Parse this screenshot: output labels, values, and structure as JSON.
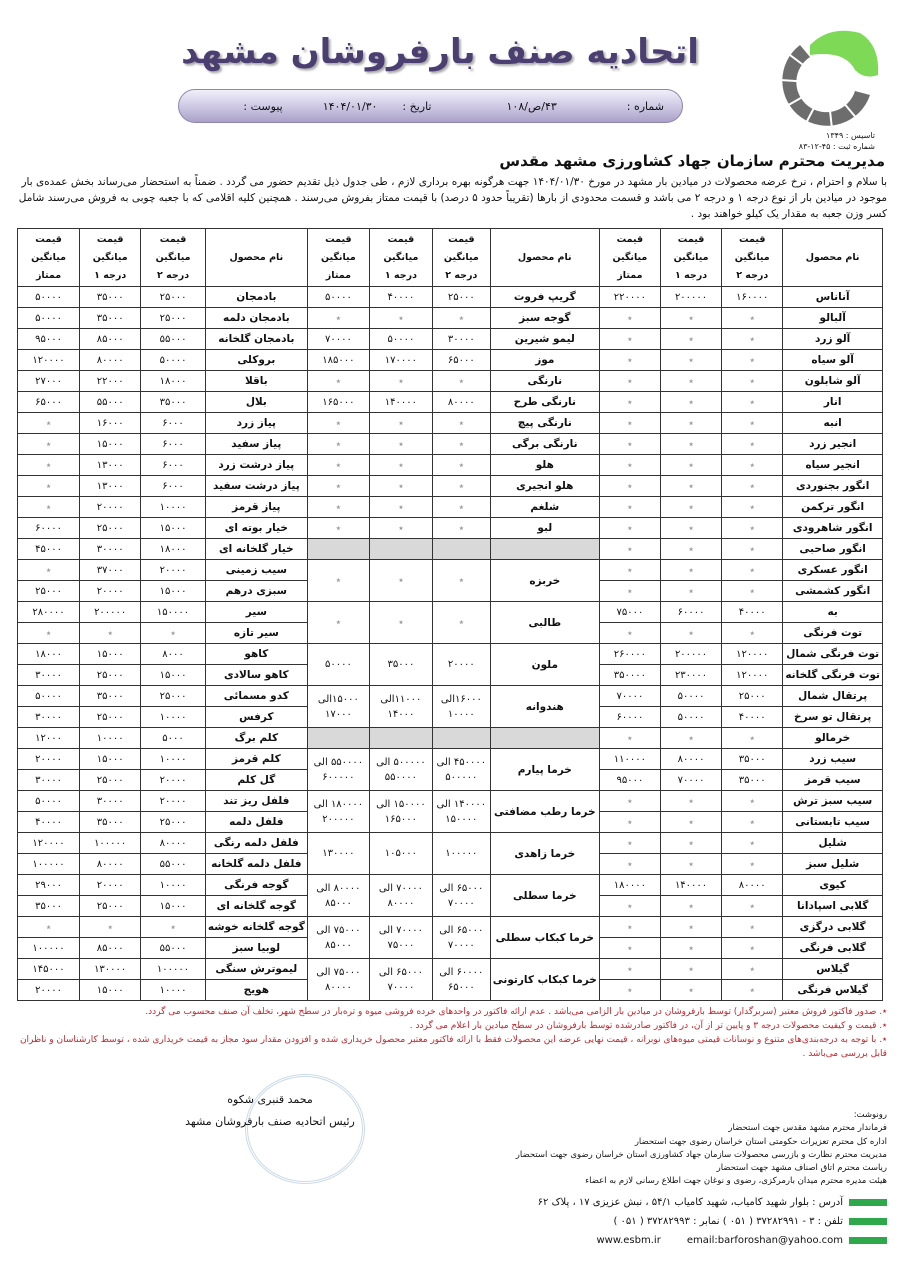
{
  "header": {
    "title": "اتحادیه صنف بارفروشان مشهد",
    "number_label": "شماره :",
    "number": "۴۳/ص/۱۰۸",
    "date_label": "تاریخ :",
    "date": "۱۴۰۴/۰۱/۳۰",
    "attachment_label": "پیوست :",
    "founded": "تاسیس : ۱۳۴۹",
    "registration": "شماره ثبت : ۴۵-۱۲-۸۳",
    "brand_colors": {
      "title": "#4b3f72",
      "logo_green": "#7ed957",
      "logo_gray": "#6d6d6d"
    }
  },
  "letter": {
    "addressee": "مدیریت محترم سازمان جهاد کشاورزی مشهد مقدس",
    "paragraph": "با سلام و احترام ، نرخ عرضه محصولات در میادین بار مشهد در مورخ ۱۴۰۴/۰۱/۳۰ جهت هرگونه بهره برداری لازم ، طی جدول ذیل تقدیم حضور می گردد . ضمناً به استحضار می‌رساند بخش عمده‌ی بار موجود در میادین بار از نوع درجه ۱ و درجه ۲ می باشد و قسمت محدودی از بارها (تقریباً حدود ۵ درصد) با قیمت ممتاز بفروش می‌رسند . همچنین کلیه اقلامی که با جعبه چوبی به فروش می‌رسند شامل کسر وزن جعبه به مقدار یک کیلو خواهند بود ."
  },
  "table": {
    "headers": {
      "name": "نام محصول",
      "g2": "قیمت میانگین درجه ۲",
      "g1": "قیمت میانگین درجه ۱",
      "premium": "قیمت میانگین ممتاز"
    },
    "unavailable": "٭",
    "right": [
      [
        "آناناس",
        "۱۶۰۰۰۰",
        "۲۰۰۰۰۰",
        "۲۲۰۰۰۰"
      ],
      [
        "آلبالو",
        "٭",
        "٭",
        "٭"
      ],
      [
        "آلو زرد",
        "٭",
        "٭",
        "٭"
      ],
      [
        "آلو سیاه",
        "٭",
        "٭",
        "٭"
      ],
      [
        "آلو شابلون",
        "٭",
        "٭",
        "٭"
      ],
      [
        "انار",
        "٭",
        "٭",
        "٭"
      ],
      [
        "انبه",
        "٭",
        "٭",
        "٭"
      ],
      [
        "انجیر زرد",
        "٭",
        "٭",
        "٭"
      ],
      [
        "انجیر سیاه",
        "٭",
        "٭",
        "٭"
      ],
      [
        "انگور بجنوردی",
        "٭",
        "٭",
        "٭"
      ],
      [
        "انگور ترکمن",
        "٭",
        "٭",
        "٭"
      ],
      [
        "انگور شاهرودی",
        "٭",
        "٭",
        "٭"
      ],
      [
        "انگور صاحبی",
        "٭",
        "٭",
        "٭"
      ],
      [
        "انگور عسکری",
        "٭",
        "٭",
        "٭"
      ],
      [
        "انگور کشمشی",
        "٭",
        "٭",
        "٭"
      ],
      [
        "به",
        "۴۰۰۰۰",
        "۶۰۰۰۰",
        "۷۵۰۰۰"
      ],
      [
        "توت فرنگی",
        "٭",
        "٭",
        "٭"
      ],
      [
        "توت فرنگی شمال",
        "۱۲۰۰۰۰",
        "۲۰۰۰۰۰",
        "۲۶۰۰۰۰"
      ],
      [
        "توت فرنگی گلخانه",
        "۱۲۰۰۰۰",
        "۲۳۰۰۰۰",
        "۳۵۰۰۰۰"
      ],
      [
        "پرتقال شمال",
        "۲۵۰۰۰",
        "۵۰۰۰۰",
        "۷۰۰۰۰"
      ],
      [
        "پرتقال تو سرخ",
        "۴۰۰۰۰",
        "۵۰۰۰۰",
        "۶۰۰۰۰"
      ],
      [
        "خرمالو",
        "٭",
        "٭",
        "٭"
      ],
      [
        "سیب زرد",
        "۳۵۰۰۰",
        "۸۰۰۰۰",
        "۱۱۰۰۰۰"
      ],
      [
        "سیب قرمز",
        "۳۵۰۰۰",
        "۷۰۰۰۰",
        "۹۵۰۰۰"
      ],
      [
        "سیب سبز ترش",
        "٭",
        "٭",
        "٭"
      ],
      [
        "سیب تابستانی",
        "٭",
        "٭",
        "٭"
      ],
      [
        "شلیل",
        "٭",
        "٭",
        "٭"
      ],
      [
        "شلیل سبز",
        "٭",
        "٭",
        "٭"
      ],
      [
        "کیوی",
        "۸۰۰۰۰",
        "۱۴۰۰۰۰",
        "۱۸۰۰۰۰"
      ],
      [
        "گلابی اسپادانا",
        "٭",
        "٭",
        "٭"
      ],
      [
        "گلابی درگزی",
        "٭",
        "٭",
        "٭"
      ],
      [
        "گلابی فرنگی",
        "٭",
        "٭",
        "٭"
      ],
      [
        "گیلاس",
        "٭",
        "٭",
        "٭"
      ],
      [
        "گیلاس فرنگی",
        "٭",
        "٭",
        "٭"
      ]
    ],
    "middle": [
      {
        "span": 1,
        "v": [
          "گریپ فروت",
          "۲۵۰۰۰",
          "۴۰۰۰۰",
          "۵۰۰۰۰"
        ]
      },
      {
        "span": 1,
        "v": [
          "گوجه سبز",
          "٭",
          "٭",
          "٭"
        ]
      },
      {
        "span": 1,
        "v": [
          "لیمو شیرین",
          "۳۰۰۰۰",
          "۵۰۰۰۰",
          "۷۰۰۰۰"
        ]
      },
      {
        "span": 1,
        "v": [
          "موز",
          "۶۵۰۰۰",
          "۱۷۰۰۰۰",
          "۱۸۵۰۰۰"
        ]
      },
      {
        "span": 1,
        "v": [
          "نارنگی",
          "٭",
          "٭",
          "٭"
        ]
      },
      {
        "span": 1,
        "v": [
          "نارنگی طرح",
          "۸۰۰۰۰",
          "۱۴۰۰۰۰",
          "۱۶۵۰۰۰"
        ]
      },
      {
        "span": 1,
        "v": [
          "نارنگی پیچ",
          "٭",
          "٭",
          "٭"
        ]
      },
      {
        "span": 1,
        "v": [
          "نارنگی برگی",
          "٭",
          "٭",
          "٭"
        ]
      },
      {
        "span": 1,
        "v": [
          "هلو",
          "٭",
          "٭",
          "٭"
        ]
      },
      {
        "span": 1,
        "v": [
          "هلو انجیری",
          "٭",
          "٭",
          "٭"
        ]
      },
      {
        "span": 1,
        "v": [
          "شلغم",
          "٭",
          "٭",
          "٭"
        ]
      },
      {
        "span": 1,
        "v": [
          "لبو",
          "٭",
          "٭",
          "٭"
        ]
      },
      {
        "span": 1,
        "empty": true
      },
      {
        "span": 2,
        "v": [
          "خربزه",
          "٭",
          "٭",
          "٭"
        ]
      },
      {
        "span": 2,
        "v": [
          "طالبی",
          "٭",
          "٭",
          "٭"
        ]
      },
      {
        "span": 2,
        "v": [
          "ملون",
          "۲۰۰۰۰",
          "۳۵۰۰۰",
          "۵۰۰۰۰"
        ]
      },
      {
        "span": 2,
        "v": [
          "هندوانه",
          "۱۶۰۰۰الی ۱۰۰۰۰",
          "۱۱۰۰۰الی ۱۴۰۰۰",
          "۱۵۰۰۰الی ۱۷۰۰۰"
        ]
      },
      {
        "span": 1,
        "empty": true
      },
      {
        "span": 2,
        "v": [
          "خرما پیارم",
          "۴۵۰۰۰۰ الی ۵۰۰۰۰۰",
          "۵۰۰۰۰۰ الی ۵۵۰۰۰۰",
          "۵۵۰۰۰۰ الی ۶۰۰۰۰۰"
        ]
      },
      {
        "span": 2,
        "v": [
          "خرما رطب مضافتی",
          "۱۴۰۰۰۰ الی ۱۵۰۰۰۰",
          "۱۵۰۰۰۰ الی ۱۶۵۰۰۰",
          "۱۸۰۰۰۰ الی ۲۰۰۰۰۰"
        ]
      },
      {
        "span": 2,
        "v": [
          "خرما زاهدی",
          "۱۰۰۰۰۰",
          "۱۰۵۰۰۰",
          "۱۳۰۰۰۰"
        ]
      },
      {
        "span": 2,
        "v": [
          "خرما سطلی",
          "۶۵۰۰۰ الی ۷۰۰۰۰",
          "۷۰۰۰۰ الی ۸۰۰۰۰",
          "۸۰۰۰۰ الی ۸۵۰۰۰"
        ]
      },
      {
        "span": 2,
        "v": [
          "خرما کبکاب سطلی",
          "۶۵۰۰۰ الی ۷۰۰۰۰",
          "۷۰۰۰۰ الی ۷۵۰۰۰",
          "۷۵۰۰۰ الی ۸۵۰۰۰"
        ]
      },
      {
        "span": 2,
        "v": [
          "خرما کبکاب کارتونی",
          "۶۰۰۰۰ الی ۶۵۰۰۰",
          "۶۵۰۰۰ الی ۷۰۰۰۰",
          "۷۵۰۰۰ الی ۸۰۰۰۰"
        ]
      }
    ],
    "left": [
      [
        "بادمجان",
        "۲۵۰۰۰",
        "۳۵۰۰۰",
        "۵۰۰۰۰"
      ],
      [
        "بادمجان دلمه",
        "۲۵۰۰۰",
        "۳۵۰۰۰",
        "۵۰۰۰۰"
      ],
      [
        "بادمجان گلخانه",
        "۵۵۰۰۰",
        "۸۵۰۰۰",
        "۹۵۰۰۰"
      ],
      [
        "بروکلی",
        "۵۰۰۰۰",
        "۸۰۰۰۰",
        "۱۲۰۰۰۰"
      ],
      [
        "باقلا",
        "۱۸۰۰۰",
        "۲۲۰۰۰",
        "۲۷۰۰۰"
      ],
      [
        "بلال",
        "۳۵۰۰۰",
        "۵۵۰۰۰",
        "۶۵۰۰۰"
      ],
      [
        "پیاز زرد",
        "۶۰۰۰",
        "۱۶۰۰۰",
        "٭"
      ],
      [
        "پیاز سفید",
        "۶۰۰۰",
        "۱۵۰۰۰",
        "٭"
      ],
      [
        "پیاز درشت زرد",
        "۶۰۰۰",
        "۱۳۰۰۰",
        "٭"
      ],
      [
        "پیاز درشت سفید",
        "۶۰۰۰",
        "۱۳۰۰۰",
        "٭"
      ],
      [
        "پیاز قرمز",
        "۱۰۰۰۰",
        "۲۰۰۰۰",
        "٭"
      ],
      [
        "خیار بوته ای",
        "۱۵۰۰۰",
        "۲۵۰۰۰",
        "۶۰۰۰۰"
      ],
      [
        "خیار گلخانه ای",
        "۱۸۰۰۰",
        "۳۰۰۰۰",
        "۴۵۰۰۰"
      ],
      [
        "سیب زمینی",
        "۲۰۰۰۰",
        "۳۷۰۰۰",
        "٭"
      ],
      [
        "سبزی درهم",
        "۱۵۰۰۰",
        "۲۰۰۰۰",
        "۲۵۰۰۰"
      ],
      [
        "سیر",
        "۱۵۰۰۰۰",
        "۲۰۰۰۰۰",
        "۲۸۰۰۰۰"
      ],
      [
        "سیر تازه",
        "٭",
        "٭",
        "٭"
      ],
      [
        "کاهو",
        "۸۰۰۰",
        "۱۵۰۰۰",
        "۱۸۰۰۰"
      ],
      [
        "کاهو سالادی",
        "۱۵۰۰۰",
        "۲۵۰۰۰",
        "۳۰۰۰۰"
      ],
      [
        "کدو مسمائی",
        "۲۵۰۰۰",
        "۳۵۰۰۰",
        "۵۰۰۰۰"
      ],
      [
        "کرفس",
        "۱۰۰۰۰",
        "۲۵۰۰۰",
        "۳۰۰۰۰"
      ],
      [
        "کلم برگ",
        "۵۰۰۰",
        "۱۰۰۰۰",
        "۱۲۰۰۰"
      ],
      [
        "کلم قرمز",
        "۱۰۰۰۰",
        "۱۵۰۰۰",
        "۲۰۰۰۰"
      ],
      [
        "گل کلم",
        "۲۰۰۰۰",
        "۲۵۰۰۰",
        "۳۰۰۰۰"
      ],
      [
        "فلفل ریز تند",
        "۲۰۰۰۰",
        "۳۰۰۰۰",
        "۵۰۰۰۰"
      ],
      [
        "فلفل دلمه",
        "۲۵۰۰۰",
        "۳۵۰۰۰",
        "۴۰۰۰۰"
      ],
      [
        "فلفل دلمه رنگی",
        "۸۰۰۰۰",
        "۱۰۰۰۰۰",
        "۱۲۰۰۰۰"
      ],
      [
        "فلفل دلمه گلخانه",
        "۵۵۰۰۰",
        "۸۰۰۰۰",
        "۱۰۰۰۰۰"
      ],
      [
        "گوجه فرنگی",
        "۱۰۰۰۰",
        "۲۰۰۰۰",
        "۲۹۰۰۰"
      ],
      [
        "گوجه گلخانه ای",
        "۱۵۰۰۰",
        "۲۵۰۰۰",
        "۳۵۰۰۰"
      ],
      [
        "گوجه گلخانه خوشه",
        "٭",
        "٭",
        "٭"
      ],
      [
        "لوبیا سبز",
        "۵۵۰۰۰",
        "۸۵۰۰۰",
        "۱۰۰۰۰۰"
      ],
      [
        "لیموترش سنگی",
        "۱۰۰۰۰۰",
        "۱۳۰۰۰۰",
        "۱۴۵۰۰۰"
      ],
      [
        "هویج",
        "۱۰۰۰۰",
        "۱۵۰۰۰",
        "۲۰۰۰۰"
      ]
    ]
  },
  "notes": [
    "٭. صدور فاکتور فروش معتبر (سربرگدار) توسط بارفروشان در میادین بار الزامی می‌باشد . عدم ارائه فاکتور در واحدهای خرده فروشی میوه و تره‌بار در سطح شهر، تخلف آن صنف محسوب می گردد.",
    "٭. قیمت و کیفیت محصولات درجه ۳ و پایین تر از آن، در فاکتور صادرشده توسط بارفروشان در سطح میادین بار اعلام می گردد .",
    "٭. با توجه به درجه‌بندی‌های متنوع و نوسانات قیمتی میوه‌های نوبرانه ، قیمت نهایی عرضه این محصولات فقط با ارائه فاکتور معتبر محصول خریداری شده و افزودن مقدار سود مجاز به قیمت خریداری شده ، توسط کارشناسان و ناظران قابل بررسی می‌باشد ."
  ],
  "signature": {
    "name": "محمد قنبری شکوه",
    "title": "رئیس اتحادیه صنف بارفروشان مشهد"
  },
  "cc": {
    "label": "رونوشت:",
    "items": [
      "فرماندار محترم مشهد مقدس جهت استحضار",
      "اداره کل محترم تعزیرات حکومتی استان خراسان رضوی جهت استحضار",
      "مدیریت محترم نظارت و بازرسی محصولات سازمان جهاد کشاورزی استان خراسان رضوی جهت استحضار",
      "ریاست محترم اتاق اصناف مشهد جهت استحضار",
      "هیئت مدیره محترم میدان بارمرکزی، رضوی و نوغان جهت اطلاع رسانی لازم به اعضاء"
    ]
  },
  "contact": {
    "address": "آدرس : بلوار شهید کامیاب، شهید کامیاب ۵۴/۱ ، نبش عزیزی ۱۷ ، پلاک ۶۲",
    "phone": "تلفن : ۳ - ۳۷۲۸۲۹۹۱ ( ۰۵۱ )      نمابر : ۳۷۲۸۲۹۹۳ ( ۰۵۱ )",
    "email": "email:barforoshan@yahoo.com",
    "website": "www.esbm.ir",
    "accent": "#2ea84a"
  }
}
